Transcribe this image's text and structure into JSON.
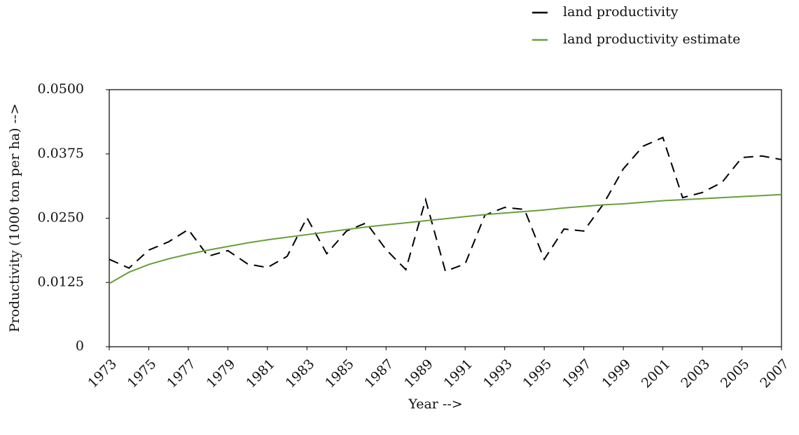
{
  "chart_data": {
    "type": "line",
    "xlabel": "Year -->",
    "ylabel": "Productivity (1000 ton per ha) -->",
    "x": [
      1973,
      1974,
      1975,
      1976,
      1977,
      1978,
      1979,
      1980,
      1981,
      1982,
      1983,
      1984,
      1985,
      1986,
      1987,
      1988,
      1989,
      1990,
      1991,
      1992,
      1993,
      1994,
      1995,
      1996,
      1997,
      1998,
      1999,
      2000,
      2001,
      2002,
      2003,
      2004,
      2005,
      2006,
      2007
    ],
    "series": [
      {
        "name": "land productivity",
        "color": "#000000",
        "style": "dashed",
        "values": [
          0.017,
          0.0153,
          0.0188,
          0.0204,
          0.0228,
          0.0176,
          0.0187,
          0.0161,
          0.0154,
          0.0176,
          0.0251,
          0.0181,
          0.0225,
          0.0241,
          0.0189,
          0.015,
          0.0286,
          0.0147,
          0.0161,
          0.0256,
          0.0271,
          0.0267,
          0.017,
          0.0229,
          0.0225,
          0.0278,
          0.0346,
          0.039,
          0.0407,
          0.029,
          0.03,
          0.032,
          0.0368,
          0.0371,
          0.0364
        ]
      },
      {
        "name": "land productivity estimate",
        "color": "#6a9f3a",
        "style": "solid",
        "values": [
          0.0123,
          0.0145,
          0.016,
          0.0171,
          0.018,
          0.0188,
          0.0195,
          0.0202,
          0.0208,
          0.0213,
          0.0218,
          0.0223,
          0.0228,
          0.0233,
          0.0237,
          0.0241,
          0.0245,
          0.0249,
          0.0253,
          0.0257,
          0.026,
          0.0263,
          0.0266,
          0.027,
          0.0273,
          0.0276,
          0.0278,
          0.0281,
          0.0284,
          0.0286,
          0.0288,
          0.029,
          0.0292,
          0.0294,
          0.0296
        ]
      }
    ],
    "xlim": [
      1973,
      2007
    ],
    "xticks": [
      1973,
      1975,
      1977,
      1979,
      1981,
      1983,
      1985,
      1987,
      1989,
      1991,
      1993,
      1995,
      1997,
      1999,
      2001,
      2003,
      2005,
      2007
    ],
    "ylim": [
      0,
      0.05
    ],
    "yticks": [
      0,
      0.0125,
      {
        "value": 0.025,
        "label": "0.0250"
      },
      0.0375,
      {
        "value": 0.05,
        "label": "0.0500"
      }
    ],
    "grid": false,
    "legend": "upper right"
  }
}
